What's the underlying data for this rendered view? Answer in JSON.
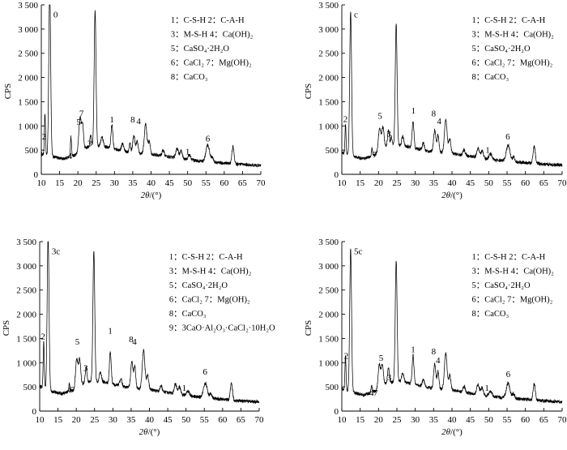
{
  "chart_data": [
    {
      "type": "line",
      "panel_tag": "0",
      "xlabel_prefix": "2",
      "xlabel_theta": "θ",
      "xlabel_unit": "/(°)",
      "ylabel": "CPS",
      "xlim": [
        10,
        70
      ],
      "ylim": [
        0,
        3500
      ],
      "xticks": [
        10,
        15,
        20,
        25,
        30,
        35,
        40,
        45,
        50,
        55,
        60,
        65,
        70
      ],
      "yticks": [
        "0",
        "500",
        "1 000",
        "1 500",
        "2 000",
        "2 500",
        "3 000",
        "3 500"
      ],
      "ytick_values": [
        0,
        500,
        1000,
        1500,
        2000,
        2500,
        3000,
        3500
      ],
      "legend_lines": [
        "1：C-S-H  2：C-A-H",
        "3：M-S-H  4：Ca(OH)₂",
        "5：CaSO₄·2H₂O",
        "6：CaCl₂  7：Mg(OH)₂",
        "8：CaCO₃"
      ],
      "baseline": [
        [
          10,
          420
        ],
        [
          12,
          380
        ],
        [
          16,
          320
        ],
        [
          20,
          420
        ],
        [
          22,
          550
        ],
        [
          25,
          600
        ],
        [
          28,
          560
        ],
        [
          33,
          470
        ],
        [
          40,
          420
        ],
        [
          45,
          360
        ],
        [
          50,
          300
        ],
        [
          55,
          260
        ],
        [
          60,
          230
        ],
        [
          65,
          200
        ],
        [
          70,
          180
        ]
      ],
      "peaks": [
        [
          11.0,
          850,
          0.15
        ],
        [
          12.3,
          3500,
          0.25
        ],
        [
          18.1,
          400,
          0.15
        ],
        [
          20.6,
          700,
          0.35
        ],
        [
          21.3,
          450,
          0.25
        ],
        [
          23.5,
          250,
          0.2
        ],
        [
          24.7,
          2800,
          0.25
        ],
        [
          26.6,
          200,
          0.3
        ],
        [
          29.3,
          500,
          0.25
        ],
        [
          32.2,
          150,
          0.3
        ],
        [
          34.2,
          200,
          0.2
        ],
        [
          35.3,
          350,
          0.3
        ],
        [
          36.2,
          250,
          0.25
        ],
        [
          38.5,
          600,
          0.35
        ],
        [
          39.5,
          250,
          0.3
        ],
        [
          43.3,
          120,
          0.3
        ],
        [
          47.1,
          200,
          0.35
        ],
        [
          48.2,
          150,
          0.35
        ],
        [
          50.5,
          100,
          0.4
        ],
        [
          55.5,
          350,
          0.5
        ],
        [
          56.8,
          100,
          0.3
        ],
        [
          62.4,
          350,
          0.3
        ]
      ],
      "peak_labels": [
        {
          "text": "2",
          "x": 10.8,
          "y": 720
        },
        {
          "text": "4",
          "x": 17.8,
          "y": 320
        },
        {
          "text": "5",
          "x": 20.2,
          "y": 1020
        },
        {
          "text": "7",
          "x": 21.0,
          "y": 1200
        },
        {
          "text": "3",
          "x": 23.2,
          "y": 580
        },
        {
          "text": "1",
          "x": 29.3,
          "y": 1070
        },
        {
          "text": "8",
          "x": 35.0,
          "y": 1070
        },
        {
          "text": "4",
          "x": 36.6,
          "y": 1040
        },
        {
          "text": "1",
          "x": 50.0,
          "y": 410
        },
        {
          "text": "6",
          "x": 55.5,
          "y": 680
        }
      ]
    },
    {
      "type": "line",
      "panel_tag": "c",
      "xlabel_prefix": "2",
      "xlabel_theta": "θ",
      "xlabel_unit": "/(°)",
      "ylabel": "CPS",
      "xlim": [
        10,
        70
      ],
      "ylim": [
        0,
        3500
      ],
      "xticks": [
        10,
        15,
        20,
        25,
        30,
        35,
        40,
        45,
        50,
        55,
        60,
        65,
        70
      ],
      "yticks": [
        "0",
        "500",
        "1 000",
        "1 500",
        "2 000",
        "2 500",
        "3 000",
        "3 500"
      ],
      "ytick_values": [
        0,
        500,
        1000,
        1500,
        2000,
        2500,
        3000,
        3500
      ],
      "legend_lines": [
        "1：C-S-H  2：C-A-H",
        "3：M-S-H  4：Ca(OH)₂",
        "5：CaSO₄·2H₂O",
        "6：CaCl₂  7：Mg(OH)₂",
        "8：CaCO₃"
      ],
      "baseline": [
        [
          10,
          450
        ],
        [
          12,
          380
        ],
        [
          16,
          320
        ],
        [
          20,
          430
        ],
        [
          22,
          560
        ],
        [
          25,
          600
        ],
        [
          28,
          570
        ],
        [
          33,
          480
        ],
        [
          40,
          430
        ],
        [
          45,
          370
        ],
        [
          50,
          310
        ],
        [
          55,
          270
        ],
        [
          60,
          240
        ],
        [
          65,
          210
        ],
        [
          70,
          190
        ]
      ],
      "peaks": [
        [
          11.0,
          600,
          0.15
        ],
        [
          12.4,
          3000,
          0.25
        ],
        [
          18.2,
          150,
          0.15
        ],
        [
          20.3,
          500,
          0.35
        ],
        [
          21.2,
          450,
          0.3
        ],
        [
          22.7,
          350,
          0.25
        ],
        [
          23.5,
          200,
          0.2
        ],
        [
          24.8,
          2500,
          0.25
        ],
        [
          26.6,
          200,
          0.3
        ],
        [
          29.4,
          550,
          0.25
        ],
        [
          32.2,
          150,
          0.3
        ],
        [
          35.3,
          450,
          0.3
        ],
        [
          36.2,
          350,
          0.25
        ],
        [
          38.3,
          700,
          0.35
        ],
        [
          39.4,
          300,
          0.3
        ],
        [
          43.3,
          120,
          0.3
        ],
        [
          47.1,
          200,
          0.35
        ],
        [
          48.2,
          150,
          0.35
        ],
        [
          50.5,
          120,
          0.4
        ],
        [
          55.3,
          330,
          0.5
        ],
        [
          56.8,
          100,
          0.3
        ],
        [
          62.4,
          350,
          0.3
        ]
      ],
      "peak_labels": [
        {
          "text": "2",
          "x": 11.0,
          "y": 1080
        },
        {
          "text": "7",
          "x": 19.0,
          "y": 340
        },
        {
          "text": "5",
          "x": 20.4,
          "y": 1150
        },
        {
          "text": "3",
          "x": 22.8,
          "y": 780
        },
        {
          "text": "1",
          "x": 29.5,
          "y": 1260
        },
        {
          "text": "8",
          "x": 35.0,
          "y": 1200
        },
        {
          "text": "4",
          "x": 36.5,
          "y": 1040
        },
        {
          "text": "1",
          "x": 49.7,
          "y": 440
        },
        {
          "text": "6",
          "x": 55.2,
          "y": 720
        }
      ]
    },
    {
      "type": "line",
      "panel_tag": "3c",
      "xlabel_prefix": "2",
      "xlabel_theta": "θ",
      "xlabel_unit": "/(°)",
      "ylabel": "CPS",
      "xlim": [
        10,
        70
      ],
      "ylim": [
        0,
        3500
      ],
      "xticks": [
        10,
        15,
        20,
        25,
        30,
        35,
        40,
        45,
        50,
        55,
        60,
        65,
        70
      ],
      "yticks": [
        "0",
        "500",
        "1 000",
        "1 500",
        "2 000",
        "2 500",
        "3 000",
        "3 500"
      ],
      "ytick_values": [
        0,
        500,
        1000,
        1500,
        2000,
        2500,
        3000,
        3500
      ],
      "legend_lines": [
        "1：C-S-H  2：C-A-H",
        "3：M-S-H  4：Ca(OH)₂",
        "5：CaSO₄·2H₂O",
        "6：CaCl₂  7：Mg(OH)₂",
        "8：CaCO₃",
        "9：3CaO·Al₂O₃·CaCl₂·10H₂O"
      ],
      "baseline": [
        [
          10,
          520
        ],
        [
          12,
          430
        ],
        [
          16,
          360
        ],
        [
          20,
          460
        ],
        [
          22,
          580
        ],
        [
          25,
          620
        ],
        [
          28,
          590
        ],
        [
          33,
          500
        ],
        [
          40,
          440
        ],
        [
          45,
          380
        ],
        [
          50,
          320
        ],
        [
          55,
          280
        ],
        [
          60,
          240
        ],
        [
          65,
          210
        ],
        [
          70,
          190
        ]
      ],
      "peaks": [
        [
          11.1,
          950,
          0.15
        ],
        [
          12.3,
          3200,
          0.25
        ],
        [
          18.1,
          150,
          0.15
        ],
        [
          20.1,
          600,
          0.3
        ],
        [
          20.9,
          550,
          0.3
        ],
        [
          22.7,
          300,
          0.25
        ],
        [
          24.8,
          2700,
          0.25
        ],
        [
          26.6,
          200,
          0.3
        ],
        [
          29.3,
          650,
          0.25
        ],
        [
          32.2,
          150,
          0.3
        ],
        [
          35.2,
          550,
          0.3
        ],
        [
          36.0,
          450,
          0.25
        ],
        [
          38.4,
          800,
          0.35
        ],
        [
          39.5,
          300,
          0.3
        ],
        [
          43.2,
          120,
          0.3
        ],
        [
          47.1,
          200,
          0.35
        ],
        [
          48.2,
          150,
          0.35
        ],
        [
          50.5,
          100,
          0.4
        ],
        [
          55.3,
          300,
          0.5
        ],
        [
          56.8,
          100,
          0.3
        ],
        [
          62.4,
          350,
          0.3
        ]
      ],
      "peak_labels": [
        {
          "text": "2",
          "x": 10.9,
          "y": 1480
        },
        {
          "text": "4",
          "x": 18.0,
          "y": 380
        },
        {
          "text": "7",
          "x": 19.0,
          "y": 380
        },
        {
          "text": "5",
          "x": 20.3,
          "y": 1370
        },
        {
          "text": "3",
          "x": 22.6,
          "y": 830
        },
        {
          "text": "1",
          "x": 29.3,
          "y": 1600
        },
        {
          "text": "8",
          "x": 35.0,
          "y": 1420
        },
        {
          "text": "4",
          "x": 35.9,
          "y": 1370
        },
        {
          "text": "1",
          "x": 49.5,
          "y": 420
        },
        {
          "text": "6",
          "x": 55.2,
          "y": 750
        }
      ]
    },
    {
      "type": "line",
      "panel_tag": "5c",
      "xlabel_prefix": "2",
      "xlabel_theta": "θ",
      "xlabel_unit": "/(°)",
      "ylabel": "CPS",
      "xlim": [
        10,
        70
      ],
      "ylim": [
        0,
        3500
      ],
      "xticks": [
        10,
        15,
        20,
        25,
        30,
        35,
        40,
        45,
        50,
        55,
        60,
        65,
        70
      ],
      "yticks": [
        "0",
        "500",
        "1 000",
        "1 500",
        "2 000",
        "2 500",
        "3 000",
        "3 500"
      ],
      "ytick_values": [
        0,
        500,
        1000,
        1500,
        2000,
        2500,
        3000,
        3500
      ],
      "legend_lines": [
        "1：C-S-H  2：C-A-H",
        "3：M-S-H  4：Ca(OH)₂",
        "5：CaSO₄·2H₂O",
        "6：CaCl₂  7：Mg(OH)₂",
        "8：CaCO₃"
      ],
      "baseline": [
        [
          10,
          470
        ],
        [
          12,
          400
        ],
        [
          16,
          330
        ],
        [
          20,
          440
        ],
        [
          22,
          570
        ],
        [
          25,
          610
        ],
        [
          28,
          580
        ],
        [
          33,
          490
        ],
        [
          40,
          430
        ],
        [
          45,
          370
        ],
        [
          50,
          310
        ],
        [
          55,
          270
        ],
        [
          60,
          240
        ],
        [
          65,
          210
        ],
        [
          70,
          190
        ]
      ],
      "peaks": [
        [
          11.0,
          700,
          0.15
        ],
        [
          12.4,
          2950,
          0.25
        ],
        [
          18.1,
          150,
          0.15
        ],
        [
          20.2,
          500,
          0.3
        ],
        [
          21.0,
          450,
          0.3
        ],
        [
          22.7,
          300,
          0.25
        ],
        [
          24.8,
          2500,
          0.25
        ],
        [
          26.6,
          200,
          0.3
        ],
        [
          29.4,
          600,
          0.25
        ],
        [
          32.2,
          150,
          0.3
        ],
        [
          35.3,
          500,
          0.3
        ],
        [
          36.2,
          350,
          0.25
        ],
        [
          38.3,
          750,
          0.35
        ],
        [
          39.4,
          300,
          0.3
        ],
        [
          43.3,
          120,
          0.3
        ],
        [
          47.1,
          200,
          0.35
        ],
        [
          48.2,
          150,
          0.35
        ],
        [
          50.5,
          100,
          0.4
        ],
        [
          55.3,
          300,
          0.5
        ],
        [
          56.8,
          100,
          0.3
        ],
        [
          62.4,
          330,
          0.3
        ]
      ],
      "peak_labels": [
        {
          "text": "2",
          "x": 11.2,
          "y": 1080
        },
        {
          "text": "4",
          "x": 18.1,
          "y": 320
        },
        {
          "text": "7",
          "x": 19.2,
          "y": 320
        },
        {
          "text": "5",
          "x": 20.7,
          "y": 1040
        },
        {
          "text": "3",
          "x": 22.9,
          "y": 640
        },
        {
          "text": "1",
          "x": 29.4,
          "y": 1210
        },
        {
          "text": "8",
          "x": 35.0,
          "y": 1170
        },
        {
          "text": "4",
          "x": 36.2,
          "y": 990
        },
        {
          "text": "1",
          "x": 49.5,
          "y": 420
        },
        {
          "text": "6",
          "x": 55.3,
          "y": 700
        }
      ]
    }
  ]
}
